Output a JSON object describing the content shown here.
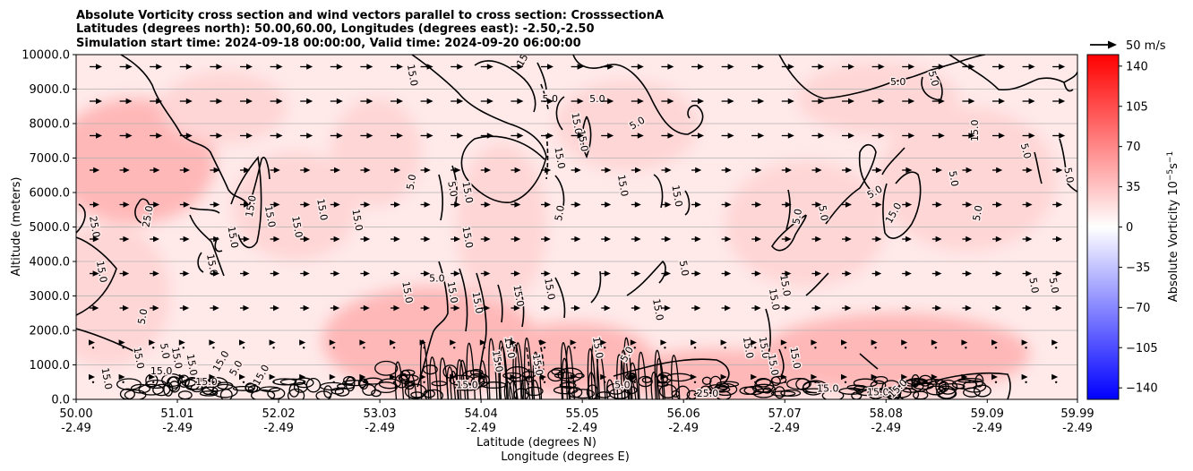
{
  "chart_data": {
    "type": "heatmap",
    "title_lines": [
      "Absolute Vorticity cross section and wind vectors parallel to cross section: CrosssectionA",
      "Latitudes (degrees north): 50.00,60.00, Longitudes (degrees east): -2.50,-2.50",
      "Simulation start time: 2024-09-18 00:00:00, Valid time: 2024-09-20 06:00:00"
    ],
    "xlabel_lat": "Latitude (degrees N)",
    "xlabel_lon": "Longitude (degrees E)",
    "ylabel": "Altitude (meters)",
    "x_ticks": [
      {
        "lat": "50.00",
        "lon": "-2.49"
      },
      {
        "lat": "51.01",
        "lon": "-2.49"
      },
      {
        "lat": "52.02",
        "lon": "-2.49"
      },
      {
        "lat": "53.03",
        "lon": "-2.49"
      },
      {
        "lat": "54.04",
        "lon": "-2.49"
      },
      {
        "lat": "55.05",
        "lon": "-2.49"
      },
      {
        "lat": "56.06",
        "lon": "-2.49"
      },
      {
        "lat": "57.07",
        "lon": "-2.49"
      },
      {
        "lat": "58.08",
        "lon": "-2.49"
      },
      {
        "lat": "59.09",
        "lon": "-2.49"
      },
      {
        "lat": "59.99",
        "lon": "-2.49"
      }
    ],
    "xlim": [
      50.0,
      59.99
    ],
    "y_ticks": [
      "0.0",
      "1000.0",
      "2000.0",
      "3000.0",
      "4000.0",
      "5000.0",
      "6000.0",
      "7000.0",
      "8000.0",
      "9000.0",
      "10000.0"
    ],
    "ylim": [
      0,
      10000
    ],
    "grid": "horizontal",
    "colorbar": {
      "label": "Absolute Vorticity 10",
      "label_exp": "−5",
      "label_unit": "s",
      "label_unit_exp": "−1",
      "ticks": [
        "140",
        "105",
        "70",
        "35",
        "0",
        "−35",
        "−70",
        "−105",
        "−140"
      ],
      "range": [
        -150,
        150
      ],
      "colormap": "bwr"
    },
    "quiver_key": {
      "label": "50 m/s",
      "value": 50
    },
    "field_colors": {
      "light": "#ffe6e6",
      "medium": "#ffd6d6",
      "strong": "#ffb8b8"
    },
    "contour_levels": [
      5.0,
      15.0,
      25.0
    ],
    "contour_labels": [
      {
        "text": "15.0",
        "lat": 54.48,
        "alt": 9950,
        "rot": -60
      },
      {
        "text": "15.0",
        "lat": 53.35,
        "alt": 9400,
        "rot": 80
      },
      {
        "text": "5.0",
        "lat": 54.73,
        "alt": 8700,
        "rot": 0
      },
      {
        "text": "5.0",
        "lat": 55.2,
        "alt": 8700,
        "rot": 0
      },
      {
        "text": "15.0",
        "lat": 54.99,
        "alt": 8000,
        "rot": 80
      },
      {
        "text": "15.0",
        "lat": 55.05,
        "alt": 7500,
        "rot": 80
      },
      {
        "text": "5.0",
        "lat": 55.6,
        "alt": 8000,
        "rot": -30
      },
      {
        "text": "5.0",
        "lat": 58.2,
        "alt": 9200,
        "rot": 0
      },
      {
        "text": "5.0",
        "lat": 58.55,
        "alt": 9300,
        "rot": 75
      },
      {
        "text": "15.0",
        "lat": 58.97,
        "alt": 7800,
        "rot": -90
      },
      {
        "text": "5.0",
        "lat": 59.47,
        "alt": 7200,
        "rot": 75
      },
      {
        "text": "5.0",
        "lat": 59.9,
        "alt": 6500,
        "rot": 80
      },
      {
        "text": "15.0",
        "lat": 54.82,
        "alt": 7000,
        "rot": 80
      },
      {
        "text": "5.0",
        "lat": 53.35,
        "alt": 6300,
        "rot": -80
      },
      {
        "text": "5.0",
        "lat": 53.75,
        "alt": 6100,
        "rot": 80
      },
      {
        "text": "15.0",
        "lat": 53.9,
        "alt": 6000,
        "rot": 80
      },
      {
        "text": "15.0",
        "lat": 55.45,
        "alt": 6200,
        "rot": 80
      },
      {
        "text": "15.0",
        "lat": 55.99,
        "alt": 5900,
        "rot": 80
      },
      {
        "text": "5.0",
        "lat": 54.83,
        "alt": 5400,
        "rot": -80
      },
      {
        "text": "25.0",
        "lat": 50.18,
        "alt": 5000,
        "rot": 80
      },
      {
        "text": "25.0",
        "lat": 50.72,
        "alt": 5300,
        "rot": -80
      },
      {
        "text": "15.0",
        "lat": 51.75,
        "alt": 5600,
        "rot": -80
      },
      {
        "text": "15.0",
        "lat": 51.93,
        "alt": 5300,
        "rot": 80
      },
      {
        "text": "15.0",
        "lat": 52.2,
        "alt": 5000,
        "rot": 80
      },
      {
        "text": "15.0",
        "lat": 52.45,
        "alt": 5500,
        "rot": 80
      },
      {
        "text": "15.0",
        "lat": 52.8,
        "alt": 5200,
        "rot": 80
      },
      {
        "text": "15.0",
        "lat": 51.56,
        "alt": 4700,
        "rot": 80
      },
      {
        "text": "15.0",
        "lat": 51.35,
        "alt": 3900,
        "rot": 80
      },
      {
        "text": "15.0",
        "lat": 50.25,
        "alt": 3700,
        "rot": 80
      },
      {
        "text": "15.0",
        "lat": 53.9,
        "alt": 4700,
        "rot": 80
      },
      {
        "text": "5.0",
        "lat": 57.2,
        "alt": 5300,
        "rot": -80
      },
      {
        "text": "5.0",
        "lat": 57.45,
        "alt": 5400,
        "rot": 80
      },
      {
        "text": "5.0",
        "lat": 57.97,
        "alt": 6000,
        "rot": -30
      },
      {
        "text": "15.0",
        "lat": 58.16,
        "alt": 5400,
        "rot": -60
      },
      {
        "text": "5.0",
        "lat": 59.0,
        "alt": 5400,
        "rot": -80
      },
      {
        "text": "5.0",
        "lat": 58.75,
        "alt": 6400,
        "rot": 80
      },
      {
        "text": "5.0",
        "lat": 56.06,
        "alt": 3800,
        "rot": 80
      },
      {
        "text": "15.0",
        "lat": 53.3,
        "alt": 3100,
        "rot": 80
      },
      {
        "text": "5.0",
        "lat": 53.6,
        "alt": 3500,
        "rot": 0
      },
      {
        "text": "15.0",
        "lat": 53.75,
        "alt": 3100,
        "rot": 80
      },
      {
        "text": "15.0",
        "lat": 54.0,
        "alt": 2800,
        "rot": 80
      },
      {
        "text": "15.0",
        "lat": 54.41,
        "alt": 3000,
        "rot": 80
      },
      {
        "text": "15.0",
        "lat": 54.72,
        "alt": 3200,
        "rot": 80
      },
      {
        "text": "15.0",
        "lat": 55.8,
        "alt": 2600,
        "rot": 80
      },
      {
        "text": "15.0",
        "lat": 57.07,
        "alt": 3300,
        "rot": 80
      },
      {
        "text": "15.0",
        "lat": 56.96,
        "alt": 2900,
        "rot": 80
      },
      {
        "text": "5.0",
        "lat": 59.55,
        "alt": 3300,
        "rot": 80
      },
      {
        "text": "5.0",
        "lat": 59.75,
        "alt": 3300,
        "rot": 80
      },
      {
        "text": "5.0",
        "lat": 50.67,
        "alt": 2400,
        "rot": -80
      },
      {
        "text": "15.0",
        "lat": 50.62,
        "alt": 1200,
        "rot": 80
      },
      {
        "text": "5.0",
        "lat": 50.88,
        "alt": 1400,
        "rot": 80
      },
      {
        "text": "15.0",
        "lat": 50.85,
        "alt": 800,
        "rot": 0
      },
      {
        "text": "15.0",
        "lat": 51.0,
        "alt": 1200,
        "rot": 80
      },
      {
        "text": "15.0",
        "lat": 51.15,
        "alt": 1000,
        "rot": 80
      },
      {
        "text": "15.0",
        "lat": 51.45,
        "alt": 1100,
        "rot": -60
      },
      {
        "text": "5.0",
        "lat": 51.6,
        "alt": 900,
        "rot": -60
      },
      {
        "text": "15.0",
        "lat": 51.85,
        "alt": 700,
        "rot": -60
      },
      {
        "text": "15.0",
        "lat": 50.3,
        "alt": 600,
        "rot": 80
      },
      {
        "text": "15.0",
        "lat": 51.3,
        "alt": 500,
        "rot": 0
      },
      {
        "text": "15.0",
        "lat": 54.2,
        "alt": 1100,
        "rot": 80
      },
      {
        "text": "15.0",
        "lat": 54.32,
        "alt": 1500,
        "rot": 80
      },
      {
        "text": "15.0",
        "lat": 54.6,
        "alt": 1000,
        "rot": 80
      },
      {
        "text": "15.0",
        "lat": 55.2,
        "alt": 1500,
        "rot": 80
      },
      {
        "text": "5.0",
        "lat": 55.5,
        "alt": 1300,
        "rot": -60
      },
      {
        "text": "15.0",
        "lat": 56.7,
        "alt": 1500,
        "rot": 80
      },
      {
        "text": "15.0",
        "lat": 56.86,
        "alt": 1500,
        "rot": 80
      },
      {
        "text": "15.0",
        "lat": 56.95,
        "alt": 1000,
        "rot": 80
      },
      {
        "text": "15.0",
        "lat": 57.17,
        "alt": 1200,
        "rot": 80
      },
      {
        "text": "15.0",
        "lat": 57.5,
        "alt": 300,
        "rot": 0
      },
      {
        "text": "15.0",
        "lat": 58.0,
        "alt": 200,
        "rot": 0
      },
      {
        "text": "15.0",
        "lat": 58.2,
        "alt": 300,
        "rot": -45
      },
      {
        "text": "5.0",
        "lat": 55.45,
        "alt": 400,
        "rot": 0
      },
      {
        "text": "15.0",
        "lat": 53.9,
        "alt": 400,
        "rot": 0
      },
      {
        "text": "25.0",
        "lat": 56.3,
        "alt": 150,
        "rot": 0
      }
    ]
  }
}
